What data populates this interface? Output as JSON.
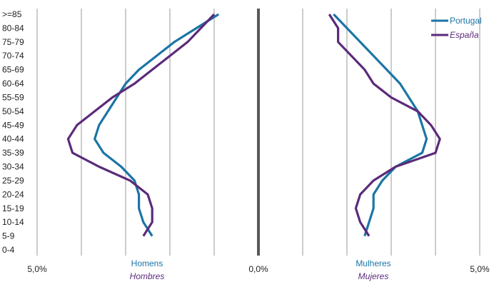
{
  "chart_data": {
    "type": "line",
    "orientation": "population-pyramid",
    "categories": [
      "0-4",
      "5-9",
      "10-14",
      "15-19",
      "20-24",
      "25-29",
      "30-34",
      "35-39",
      "40-44",
      "45-49",
      "50-54",
      "55-59",
      "60-64",
      "65-69",
      "70-74",
      "75-79",
      "80-84",
      ">=85"
    ],
    "x_axis": {
      "ticks": [
        "5,0%",
        "0,0%",
        "5,0%"
      ],
      "range": [
        -5.0,
        5.0
      ],
      "grid": true
    },
    "side_labels": {
      "left": {
        "pt": "Homens",
        "es": "Hombres"
      },
      "right": {
        "pt": "Mulheres",
        "es": "Mujeres"
      }
    },
    "legend": {
      "placement": "top-right"
    },
    "series": [
      {
        "name": "Portugal",
        "color": "#1b75a5",
        "left": [
          null,
          2.4,
          2.6,
          2.7,
          2.7,
          2.8,
          3.1,
          3.5,
          3.7,
          3.6,
          3.4,
          3.2,
          3.0,
          2.7,
          2.3,
          1.9,
          1.4,
          0.9
        ],
        "right": [
          null,
          2.4,
          2.5,
          2.6,
          2.6,
          2.8,
          3.1,
          3.7,
          3.8,
          3.7,
          3.6,
          3.4,
          3.2,
          2.9,
          2.6,
          2.3,
          2.0,
          1.7
        ]
      },
      {
        "name": "España",
        "color": "#5b2a7b",
        "left": [
          null,
          2.6,
          2.4,
          2.4,
          2.5,
          2.9,
          3.6,
          4.2,
          4.3,
          4.1,
          3.7,
          3.3,
          2.8,
          2.4,
          2.0,
          1.6,
          1.3,
          1.0
        ],
        "right": [
          null,
          2.5,
          2.3,
          2.2,
          2.3,
          2.6,
          3.1,
          4.0,
          4.1,
          3.9,
          3.6,
          3.0,
          2.6,
          2.4,
          2.1,
          1.8,
          1.8,
          1.6
        ]
      }
    ]
  }
}
